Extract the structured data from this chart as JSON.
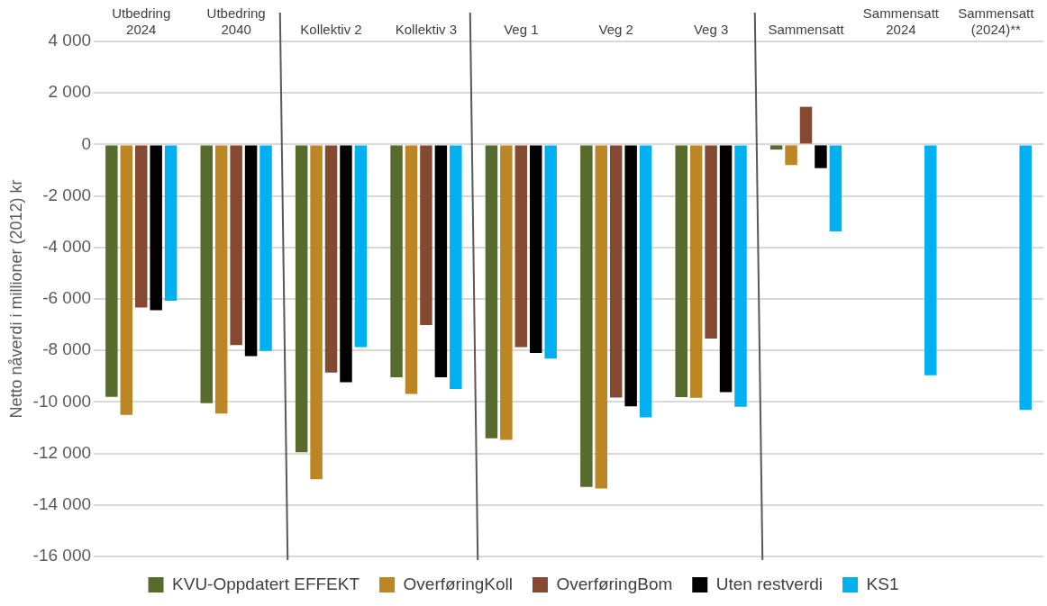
{
  "chart_data": {
    "type": "bar",
    "ylabel": "Netto nåverdi i millioner (2012) kr",
    "categories": [
      "Utbedring 2024",
      "Utbedring 2040",
      "Kollektiv 2",
      "Kollektiv 3",
      "Veg 1",
      "Veg 2",
      "Veg 3",
      "Sammensatt",
      "Sammensatt 2024",
      "Sammensatt (2024)**"
    ],
    "series": [
      {
        "name": "KVU-Oppdatert EFFEKT",
        "color": "#576b2d",
        "values": [
          -9800,
          -10050,
          -11950,
          -9040,
          -11410,
          -13300,
          -9810,
          -200,
          null,
          null
        ]
      },
      {
        "name": "OverføringKoll",
        "color": "#bd8624",
        "values": [
          -10500,
          -10450,
          -13000,
          -9690,
          -11470,
          -13360,
          -9840,
          -800,
          null,
          null
        ]
      },
      {
        "name": "OverføringBom",
        "color": "#854830",
        "values": [
          -6330,
          -7790,
          -8860,
          -7010,
          -7870,
          -9830,
          -7540,
          1460,
          null,
          null
        ]
      },
      {
        "name": "Uten restverdi",
        "color": "#000000",
        "values": [
          -6440,
          -8220,
          -9230,
          -9040,
          -8100,
          -10170,
          -9620,
          -920,
          null,
          null
        ]
      },
      {
        "name": "KS1",
        "color": "#00b0f0",
        "values": [
          -6070,
          -8020,
          -7870,
          -9500,
          -8320,
          -10600,
          -10190,
          -3380,
          -8960,
          -10310
        ]
      }
    ],
    "ylim": [
      -16000,
      4000
    ],
    "yticks": [
      {
        "value": -16000,
        "label": "-16 000"
      },
      {
        "value": -14000,
        "label": "-14 000"
      },
      {
        "value": -12000,
        "label": "-12 000"
      },
      {
        "value": -10000,
        "label": "-10 000"
      },
      {
        "value": -8000,
        "label": "-8 000"
      },
      {
        "value": -6000,
        "label": "-6 000"
      },
      {
        "value": -4000,
        "label": "-4 000"
      },
      {
        "value": -2000,
        "label": "-2 000"
      },
      0,
      {
        "value": 2000,
        "label": "2 000"
      },
      {
        "value": 4000,
        "label": "4 000"
      }
    ],
    "grid": "y",
    "legend": "bottom"
  }
}
